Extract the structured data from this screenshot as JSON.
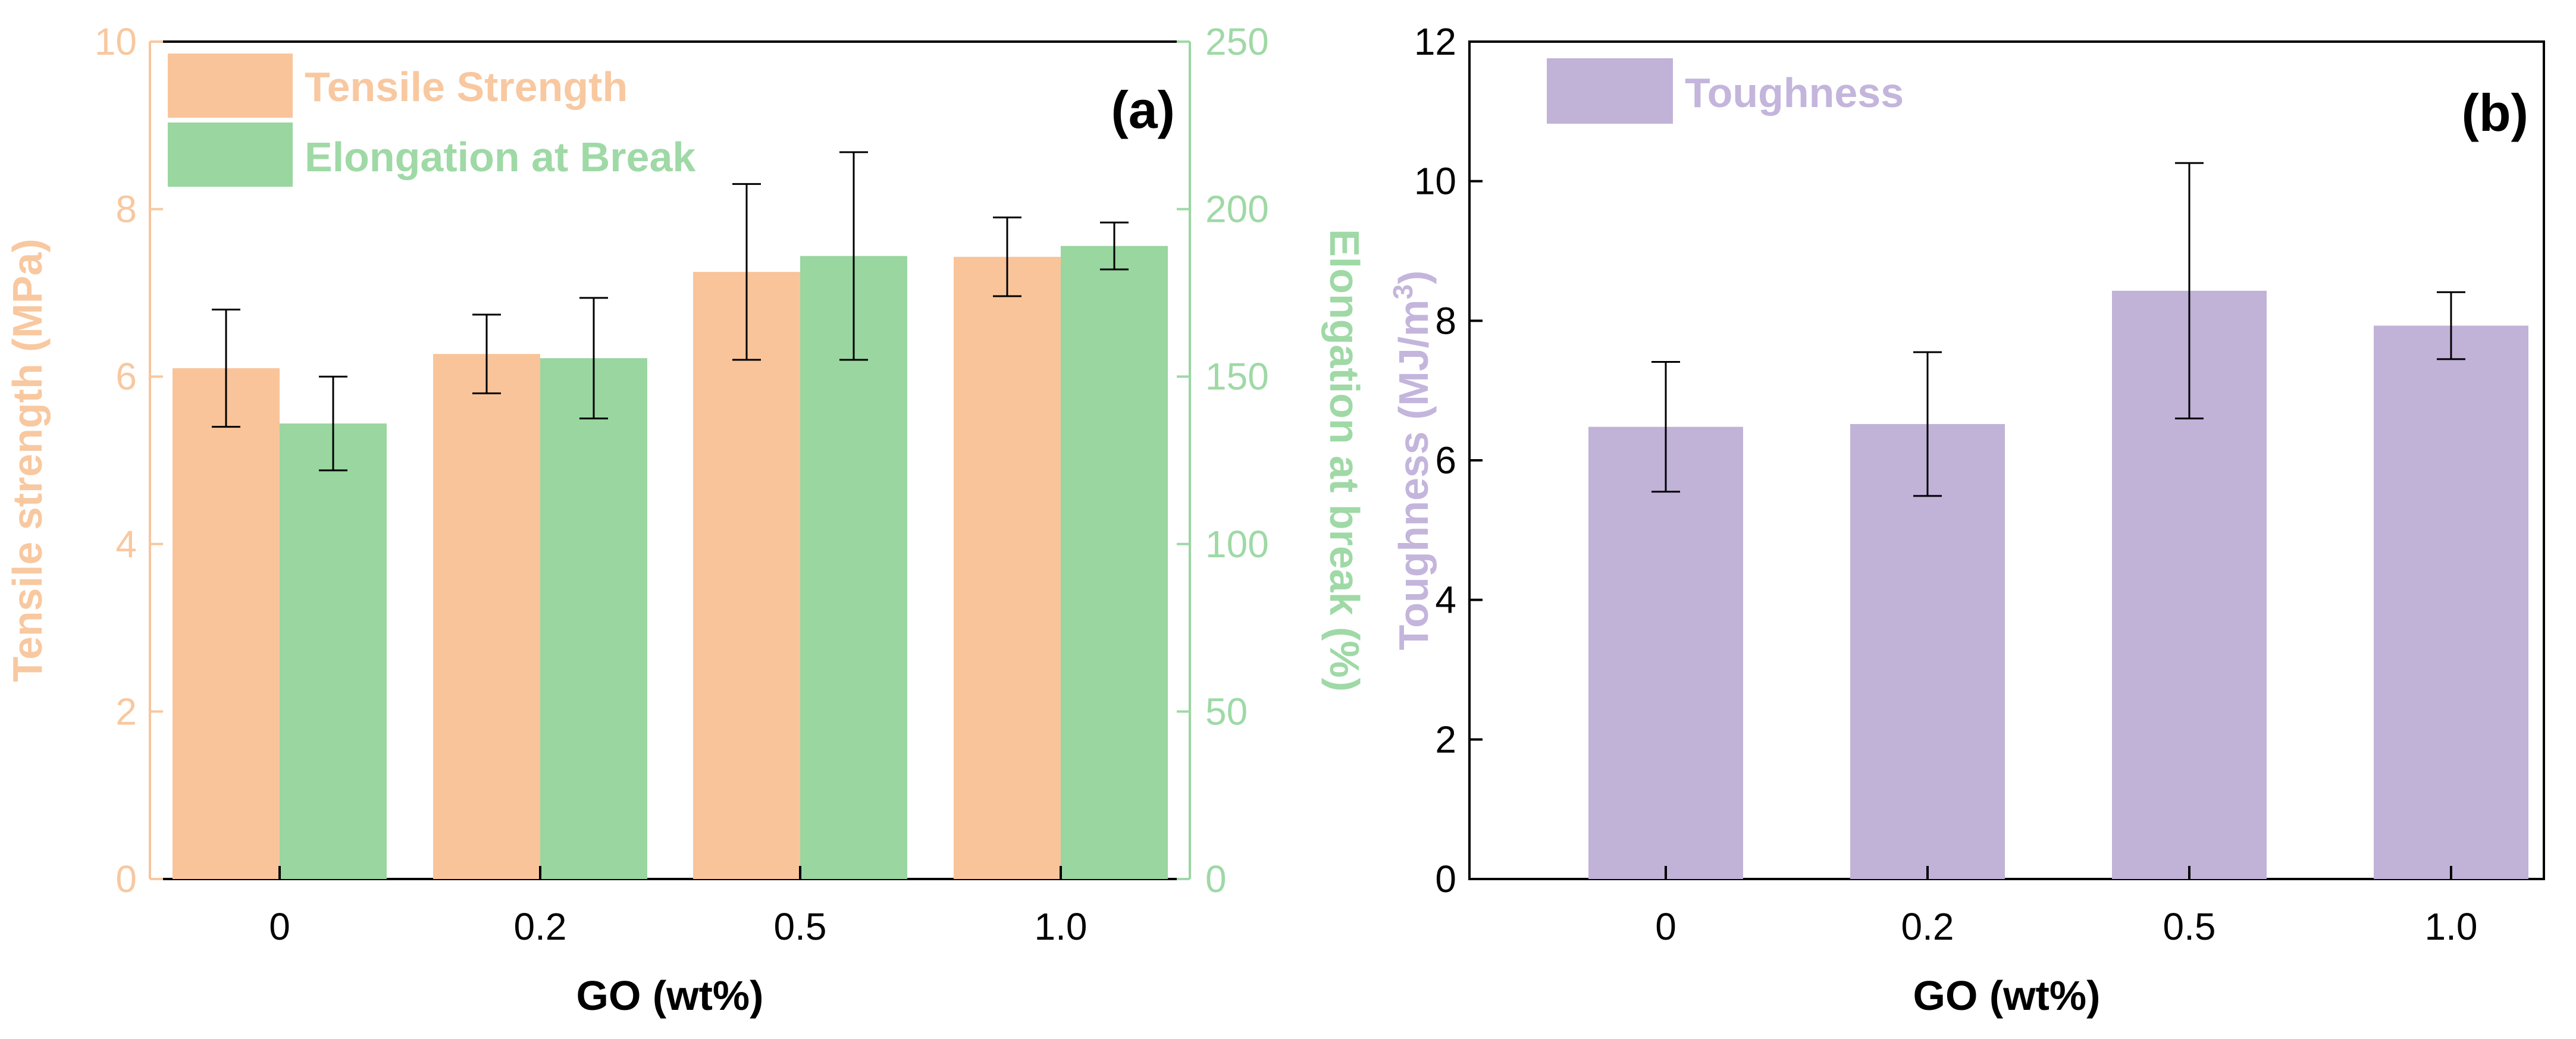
{
  "colors": {
    "tensile": "#f9c49a",
    "elongation": "#99d6a0",
    "toughness": "#c1b2d8",
    "tensile_text": "#f8c8a0",
    "elongation_text": "#9fd9a6",
    "toughness_text": "#c4b5dc",
    "axis": "#000000",
    "errorbar": "#000000"
  },
  "chart_data": [
    {
      "panel": "a",
      "type": "bar",
      "panel_label": "(a)",
      "categories": [
        "0",
        "0.2",
        "0.5",
        "1.0"
      ],
      "xlabel": "GO (wt%)",
      "series": [
        {
          "name": "Tensile Strength",
          "axis": "left",
          "color_key": "tensile",
          "values": [
            6.1,
            6.27,
            7.25,
            7.43
          ],
          "error": [
            0.7,
            0.47,
            1.05,
            0.47
          ]
        },
        {
          "name": "Elongation at Break",
          "axis": "right",
          "color_key": "elongation",
          "values": [
            136,
            155.5,
            186,
            189
          ],
          "error": [
            14,
            18,
            31,
            7
          ]
        }
      ],
      "left_axis": {
        "label": "Tensile strength (MPa)",
        "ylim": [
          0,
          10
        ],
        "ticks": [
          0,
          2,
          4,
          6,
          8,
          10
        ],
        "tick_labels": [
          "0",
          "2",
          "4",
          "6",
          "8",
          "10"
        ]
      },
      "right_axis": {
        "label": "Elongation at break (%)",
        "ylim": [
          0,
          250
        ],
        "ticks": [
          0,
          50,
          100,
          150,
          200,
          250
        ],
        "tick_labels": [
          "0",
          "50",
          "100",
          "150",
          "200",
          "250"
        ]
      },
      "legend": [
        "Tensile Strength",
        "Elongation at Break"
      ],
      "legend_position": "top-left"
    },
    {
      "panel": "b",
      "type": "bar",
      "panel_label": "(b)",
      "categories": [
        "0",
        "0.2",
        "0.5",
        "1.0"
      ],
      "xlabel": "GO (wt%)",
      "series": [
        {
          "name": "Toughness",
          "axis": "left",
          "color_key": "toughness",
          "values": [
            6.48,
            6.52,
            8.43,
            7.93
          ],
          "error": [
            0.93,
            1.03,
            1.83,
            0.48
          ]
        }
      ],
      "left_axis": {
        "label": "Toughness (MJ/m",
        "label_sup": "3",
        "label_end": ")",
        "ylim": [
          0,
          12
        ],
        "ticks": [
          0,
          2,
          4,
          6,
          8,
          10,
          12
        ],
        "tick_labels": [
          "0",
          "2",
          "4",
          "6",
          "8",
          "10",
          "12"
        ]
      },
      "legend": [
        "Toughness"
      ],
      "legend_position": "top-left"
    }
  ]
}
